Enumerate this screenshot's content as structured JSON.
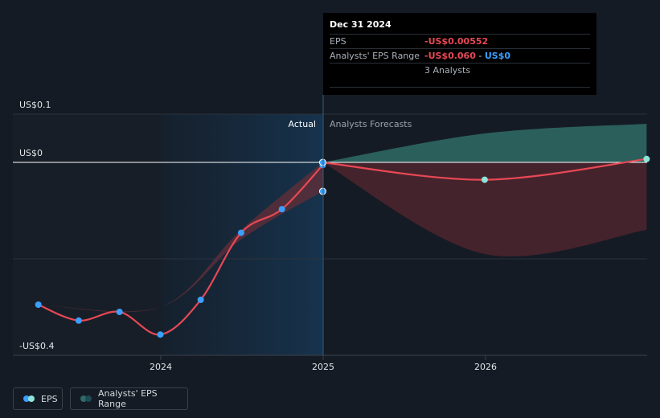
{
  "chart_data": {
    "type": "line",
    "y_axis_labels": [
      "US$0.1",
      "US$0",
      "-US$0.4"
    ],
    "x_tick_labels": [
      "2024",
      "2025",
      "2026"
    ],
    "section_labels": {
      "actual": "Actual",
      "forecast": "Analysts Forecasts"
    },
    "ylim": [
      -0.4,
      0.1
    ],
    "series": [
      {
        "name": "EPS",
        "color": "#e84855",
        "points": [
          {
            "x": "2023-03-31",
            "y": -0.295
          },
          {
            "x": "2023-06-30",
            "y": -0.328
          },
          {
            "x": "2023-09-30",
            "y": -0.31
          },
          {
            "x": "2023-12-31",
            "y": -0.357
          },
          {
            "x": "2024-03-31",
            "y": -0.285
          },
          {
            "x": "2024-06-30",
            "y": -0.146
          },
          {
            "x": "2024-09-30",
            "y": -0.097
          },
          {
            "x": "2024-12-31",
            "y": -0.00552
          }
        ]
      },
      {
        "name": "Analysts' EPS Range",
        "color": "#2f6b66",
        "low_points": [
          {
            "x": "2023-03-31",
            "y": -0.295
          },
          {
            "x": "2023-12-31",
            "y": -0.3
          },
          {
            "x": "2024-06-30",
            "y": -0.16
          },
          {
            "x": "2024-12-31",
            "y": -0.06
          }
        ],
        "high_points": [
          {
            "x": "2023-03-31",
            "y": -0.295
          },
          {
            "x": "2023-12-31",
            "y": -0.3
          },
          {
            "x": "2024-06-30",
            "y": -0.14
          },
          {
            "x": "2024-12-31",
            "y": 0.0
          }
        ]
      },
      {
        "name": "EPS forecast",
        "color": "#e84855",
        "points": [
          {
            "x": "2024-12-31",
            "y": 0.0
          },
          {
            "x": "2025-12-31",
            "y": -0.036
          },
          {
            "x": "2026-12-31",
            "y": 0.007
          }
        ],
        "range_low": [
          {
            "x": "2024-12-31",
            "y": 0.0
          },
          {
            "x": "2025-12-31",
            "y": -0.19
          },
          {
            "x": "2026-12-31",
            "y": -0.14
          }
        ],
        "range_high": [
          {
            "x": "2024-12-31",
            "y": 0.0
          },
          {
            "x": "2025-12-31",
            "y": 0.06
          },
          {
            "x": "2026-12-31",
            "y": 0.08
          }
        ]
      }
    ],
    "tooltip": {
      "date": "Dec 31 2024",
      "eps_label": "EPS",
      "eps_value": "-US$0.00552",
      "range_label": "Analysts' EPS Range",
      "range_low": "-US$0.060",
      "range_sep": " - ",
      "range_high": "US$0",
      "analysts": "3 Analysts"
    }
  },
  "legend": [
    {
      "label": "EPS",
      "colors": [
        "#3aa0ff",
        "#8fe3d6"
      ]
    },
    {
      "label": "Analysts' EPS Range",
      "colors": [
        "#2f6b66",
        "#1e4a55"
      ]
    }
  ]
}
